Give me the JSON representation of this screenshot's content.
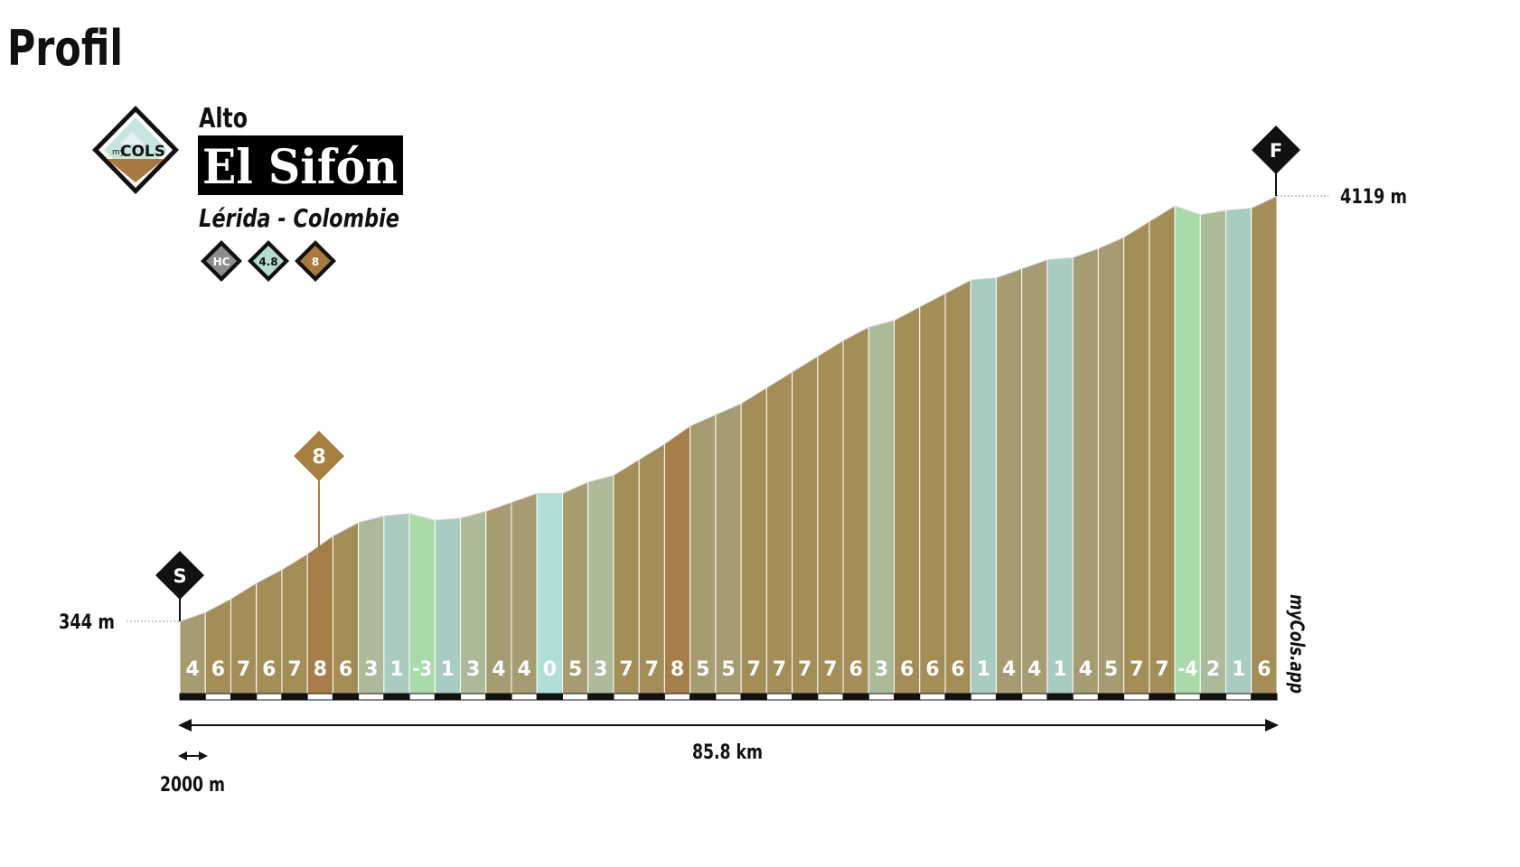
{
  "page_title": "Profil",
  "climb": {
    "prefix": "Alto",
    "name": "El Sifón",
    "location": "Lérida - Colombie",
    "badges": [
      {
        "label": "HC",
        "color": "#8c8c8c"
      },
      {
        "label": "4.8",
        "color": "#b7dcd2"
      },
      {
        "label": "8",
        "color": "#a7793f"
      }
    ]
  },
  "logo": {
    "top": "my",
    "main": "COLS"
  },
  "watermark": "myCols.app",
  "markers": {
    "start": "S",
    "finish": "F",
    "steepest": "8"
  },
  "chart_data": {
    "type": "area",
    "title": "",
    "xlabel": "",
    "ylabel": "",
    "total_distance_label": "85.8 km",
    "segment_length_label": "2000 m",
    "total_distance_km": 85.8,
    "segment_length_m": 2000,
    "start_altitude_label": "344 m",
    "end_altitude_label": "4119 m",
    "start_altitude_m": 344,
    "end_altitude_m": 4119,
    "gradients": [
      4,
      6,
      7,
      6,
      7,
      8,
      6,
      3,
      1,
      -3,
      1,
      3,
      4,
      4,
      0,
      5,
      3,
      7,
      7,
      8,
      5,
      5,
      7,
      7,
      7,
      7,
      6,
      3,
      6,
      6,
      6,
      1,
      4,
      4,
      1,
      4,
      5,
      7,
      7,
      -4,
      2,
      1,
      6
    ],
    "steepest_marker_km": 5.5,
    "steepest_gradient": 8
  },
  "colors": {
    "neg": "#a8dba8",
    "zero": "#b0dfd5",
    "low": "#a8ccc2",
    "mid_low": "#abbb9a",
    "mid": "#a69c71",
    "high": "#a48e58",
    "max": "#a67e47",
    "marker_8": "#a7803f"
  }
}
